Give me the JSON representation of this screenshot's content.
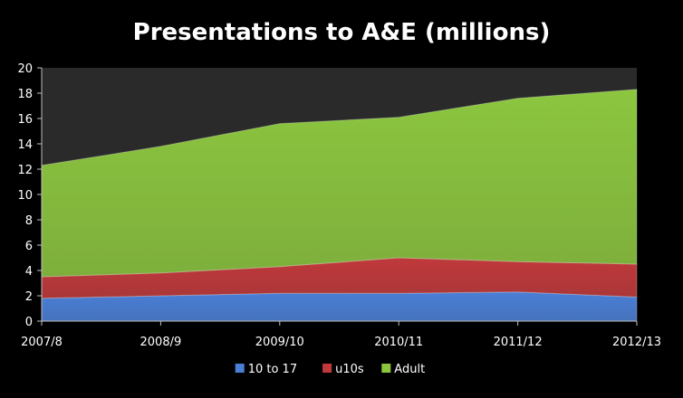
{
  "chart_data": {
    "type": "area",
    "stacked": true,
    "title": "Presentations to A&E (millions)",
    "categories": [
      "2007/8",
      "2008/9",
      "2009/10",
      "2010/11",
      "2011/12",
      "2012/13"
    ],
    "series": [
      {
        "name": "10 to 17",
        "values": [
          1.8,
          2.0,
          2.2,
          2.2,
          2.3,
          1.9
        ],
        "color": "#4a7fd6"
      },
      {
        "name": "u10s",
        "values": [
          1.7,
          1.8,
          2.1,
          2.8,
          2.4,
          2.6
        ],
        "color": "#c0393b"
      },
      {
        "name": "Adult",
        "values": [
          8.8,
          10.0,
          11.3,
          11.1,
          12.9,
          13.8
        ],
        "color": "#8cc63f"
      }
    ],
    "ylim": [
      0,
      20
    ],
    "yticks": [
      "0",
      "2",
      "4",
      "6",
      "8",
      "10",
      "12",
      "14",
      "16",
      "18",
      "20"
    ],
    "grid": false,
    "plot_background": "#2a2a2a",
    "legend_position": "bottom"
  }
}
